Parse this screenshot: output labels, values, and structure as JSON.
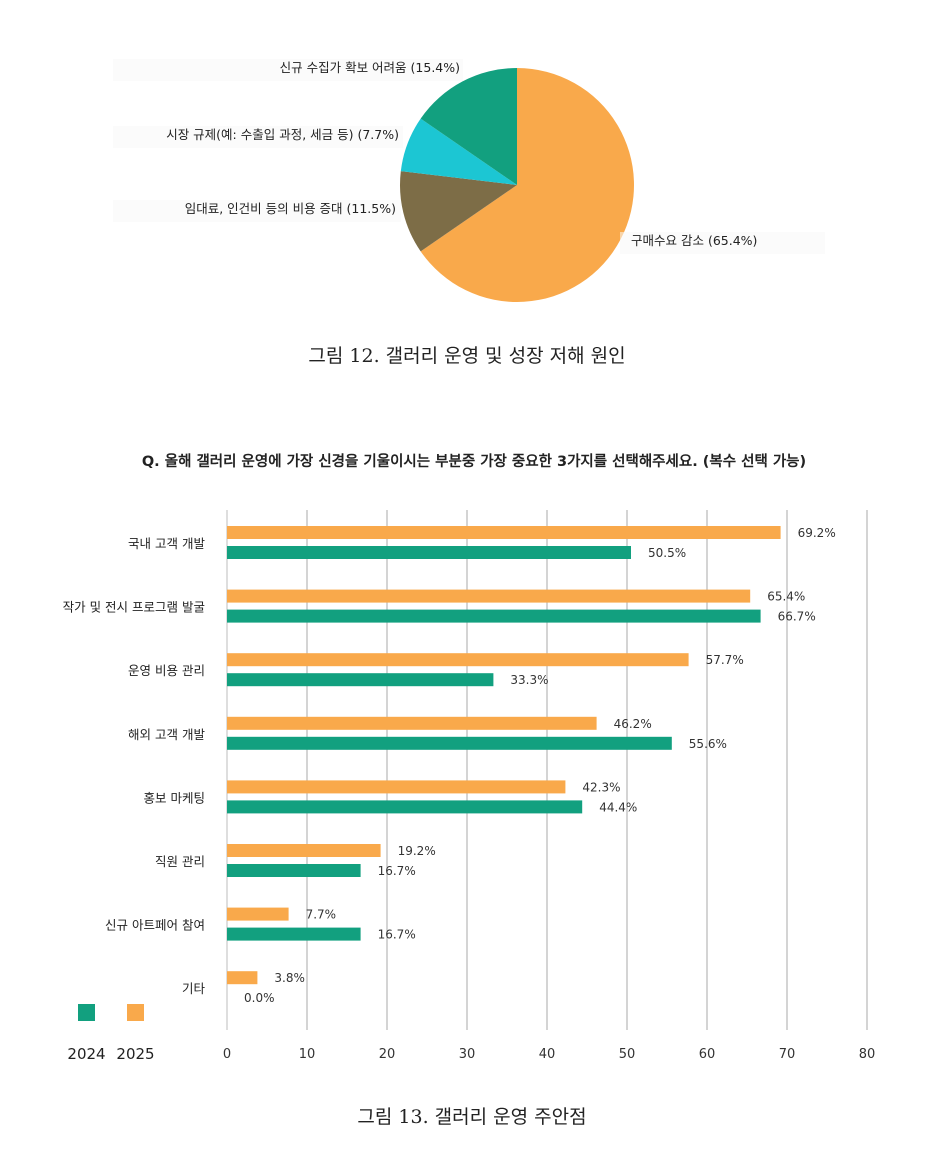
{
  "figure12": {
    "caption": "그림 12. 갤러리 운영 및 성장 저해 원인"
  },
  "figure13": {
    "question": "Q. 올해 갤러리 운영에 가장 신경을 기울이시는 부분중 가장 중요한 3가지를 선택해주세요. (복수 선택 가능)",
    "caption": "그림 13. 갤러리 운영 주안점"
  },
  "colors": {
    "green": "#12A07F",
    "orange": "#F9A94B",
    "cyan": "#1CC6D3",
    "brown": "#7D6D47",
    "grid": "#A9A9A9"
  },
  "chart_data": [
    {
      "type": "pie",
      "slices": [
        {
          "label": "구매수요 감소 (65.4%)",
          "value": 65.4,
          "color": "#F9A94B"
        },
        {
          "label": "임대료, 인건비 등의 비용 증대 (11.5%)",
          "value": 11.5,
          "color": "#7D6D47"
        },
        {
          "label": "시장 규제(예: 수출입 과정, 세금 등) (7.7%)",
          "value": 7.7,
          "color": "#1CC6D3"
        },
        {
          "label": "신규 수집가 확보 어려움 (15.4%)",
          "value": 15.4,
          "color": "#12A07F"
        }
      ]
    },
    {
      "type": "bar",
      "orientation": "horizontal",
      "categories": [
        "국내 고객 개발",
        "작가 및 전시 프로그램 발굴",
        "운영 비용 관리",
        "해외 고객 개발",
        "홍보 마케팅",
        "직원 관리",
        "신규 아트페어 참여",
        "기타"
      ],
      "series": [
        {
          "name": "2025",
          "color": "#F9A94B",
          "values": [
            69.2,
            65.4,
            57.7,
            46.2,
            42.3,
            19.2,
            7.7,
            3.8
          ],
          "labels": [
            "69.2%",
            "65.4%",
            "57.7%",
            "46.2%",
            "42.3%",
            "19.2%",
            "7.7%",
            "3.8%"
          ]
        },
        {
          "name": "2024",
          "color": "#12A07F",
          "values": [
            50.5,
            66.7,
            33.3,
            55.6,
            44.4,
            16.7,
            16.7,
            0.0
          ],
          "labels": [
            "50.5%",
            "66.7%",
            "33.3%",
            "55.6%",
            "44.4%",
            "16.7%",
            "16.7%",
            "0.0%"
          ]
        }
      ],
      "legend": [
        "2024",
        "2025"
      ],
      "xlim": [
        0,
        80
      ],
      "xticks": [
        "0",
        "10",
        "20",
        "30",
        "40",
        "50",
        "60",
        "70",
        "80"
      ],
      "grid": true,
      "legend_position": "bottom-left"
    }
  ]
}
